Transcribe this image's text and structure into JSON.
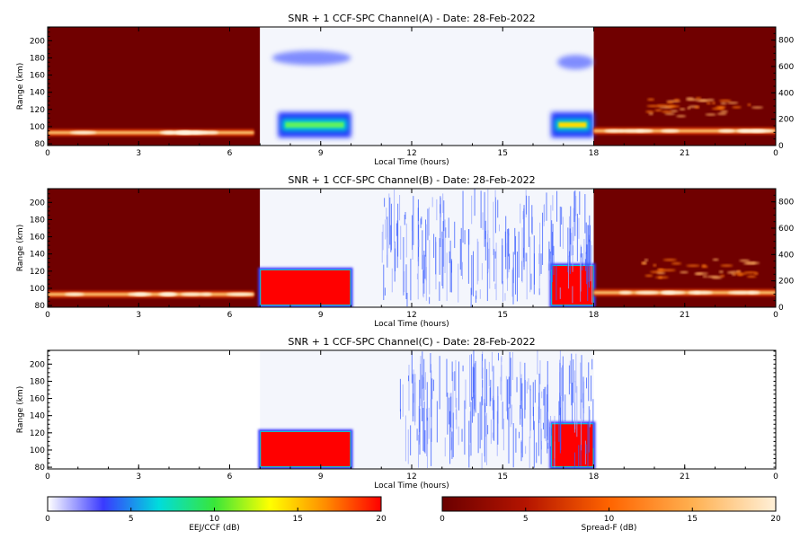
{
  "chart_data": [
    {
      "type": "heatmap",
      "title": "SNR + 1 CCF-SPC Channel(A) - Date: 28-Feb-2022",
      "xlabel": "Local Time (hours)",
      "ylabel": "Range (km)",
      "xlim": [
        0,
        24
      ],
      "ylim": [
        78,
        216
      ],
      "xticks": [
        "0",
        "3",
        "6",
        "9",
        "12",
        "15",
        "18",
        "21",
        "0"
      ],
      "yticks": [
        "80",
        "100",
        "120",
        "140",
        "160",
        "180",
        "200"
      ],
      "right_ylim": [
        0,
        900
      ],
      "right_yticks": [
        "0",
        "200",
        "400",
        "600",
        "800"
      ],
      "spread_f_night_hours": [
        [
          0,
          7
        ],
        [
          18,
          24
        ]
      ],
      "eej_ccf_window_hours": [
        7,
        18
      ],
      "features": [
        {
          "kind": "spreadf-trace",
          "t_start": 0,
          "t_end": 6.8,
          "range_km": 93
        },
        {
          "kind": "eej-blob",
          "t_start": 7.6,
          "t_end": 10,
          "range_km": 102,
          "level_db": 8
        },
        {
          "kind": "eej-blob",
          "t_start": 16.6,
          "t_end": 18,
          "range_km": 102,
          "level_db": 12
        },
        {
          "kind": "upper-patch",
          "t_start": 7.4,
          "t_end": 10,
          "range_km": 180,
          "level_db": 4
        },
        {
          "kind": "upper-patch",
          "t_start": 16.8,
          "t_end": 18,
          "range_km": 175,
          "level_db": 4
        },
        {
          "kind": "spreadf-trace",
          "t_start": 18,
          "t_end": 24,
          "range_km": 95
        },
        {
          "kind": "spreadf-plume",
          "t_start": 19.5,
          "t_end": 23.5,
          "range_km": 120
        }
      ]
    },
    {
      "type": "heatmap",
      "title": "SNR + 1 CCF-SPC Channel(B) - Date: 28-Feb-2022",
      "xlabel": "Local Time (hours)",
      "ylabel": "Range (km)",
      "xlim": [
        0,
        24
      ],
      "ylim": [
        78,
        216
      ],
      "xticks": [
        "0",
        "3",
        "6",
        "9",
        "12",
        "15",
        "18",
        "21",
        "0"
      ],
      "yticks": [
        "80",
        "100",
        "120",
        "140",
        "160",
        "180",
        "200"
      ],
      "right_ylim": [
        0,
        900
      ],
      "right_yticks": [
        "0",
        "200",
        "400",
        "600",
        "800"
      ],
      "spread_f_night_hours": [
        [
          0,
          7
        ],
        [
          18,
          24
        ]
      ],
      "eej_ccf_window_hours": [
        7,
        18
      ],
      "features": [
        {
          "kind": "spreadf-trace",
          "t_start": 0,
          "t_end": 6.8,
          "range_km": 93
        },
        {
          "kind": "eej-saturated",
          "t_start": 7,
          "t_end": 10,
          "range_km_low": 81,
          "range_km_high": 121,
          "level_db": 20
        },
        {
          "kind": "eej-saturated",
          "t_start": 16.6,
          "t_end": 18,
          "range_km_low": 81,
          "range_km_high": 126,
          "level_db": 20
        },
        {
          "kind": "noise-streaks",
          "t_start": 11,
          "t_end": 18,
          "level_db": 4
        },
        {
          "kind": "spreadf-trace",
          "t_start": 18,
          "t_end": 24,
          "range_km": 95
        },
        {
          "kind": "spreadf-plume",
          "t_start": 19.5,
          "t_end": 23.5,
          "range_km": 120
        }
      ]
    },
    {
      "type": "heatmap",
      "title": "SNR + 1 CCF-SPC Channel(C) - Date: 28-Feb-2022",
      "xlabel": "Local Time (hours)",
      "ylabel": "Range (km)",
      "xlim": [
        0,
        24
      ],
      "ylim": [
        78,
        216
      ],
      "xticks": [
        "0",
        "3",
        "6",
        "9",
        "12",
        "15",
        "18",
        "21",
        "0"
      ],
      "yticks": [
        "80",
        "100",
        "120",
        "140",
        "160",
        "180",
        "200"
      ],
      "spread_f_night_hours": [],
      "eej_ccf_window_hours": [
        7,
        18
      ],
      "features": [
        {
          "kind": "eej-saturated",
          "t_start": 7,
          "t_end": 10,
          "range_km_low": 81,
          "range_km_high": 121,
          "level_db": 20
        },
        {
          "kind": "eej-saturated",
          "t_start": 16.6,
          "t_end": 18,
          "range_km_low": 81,
          "range_km_high": 130,
          "level_db": 20
        },
        {
          "kind": "noise-streaks",
          "t_start": 11.5,
          "t_end": 18,
          "level_db": 4
        }
      ]
    }
  ],
  "colorbars": [
    {
      "label": "EEJ/CCF (dB)",
      "ticks": [
        "0",
        "5",
        "10",
        "15",
        "20"
      ],
      "range": [
        0,
        20
      ],
      "stops": [
        "#ffffff",
        "#3a3aff",
        "#00dcdc",
        "#39e639",
        "#ffff00",
        "#ff8c00",
        "#ff0000"
      ]
    },
    {
      "label": "Spread-F (dB)",
      "ticks": [
        "0",
        "5",
        "10",
        "15",
        "20"
      ],
      "range": [
        0,
        20
      ],
      "stops": [
        "#6b0000",
        "#b41400",
        "#ff6400",
        "#ffb050",
        "#fff0d8"
      ]
    }
  ]
}
